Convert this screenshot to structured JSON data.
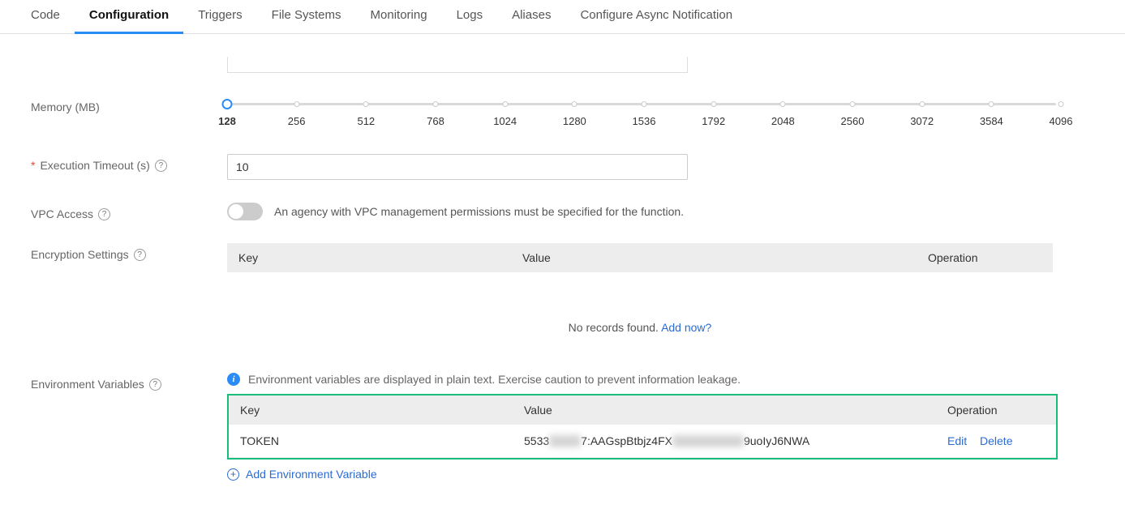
{
  "tabs": [
    {
      "label": "Code",
      "active": false
    },
    {
      "label": "Configuration",
      "active": true
    },
    {
      "label": "Triggers",
      "active": false
    },
    {
      "label": "File Systems",
      "active": false
    },
    {
      "label": "Monitoring",
      "active": false
    },
    {
      "label": "Logs",
      "active": false
    },
    {
      "label": "Aliases",
      "active": false
    },
    {
      "label": "Configure Async Notification",
      "active": false
    }
  ],
  "memory": {
    "label": "Memory (MB)",
    "current": "128",
    "steps": [
      "128",
      "256",
      "512",
      "768",
      "1024",
      "1280",
      "1536",
      "1792",
      "2048",
      "2560",
      "3072",
      "3584",
      "4096"
    ]
  },
  "timeout": {
    "label": "Execution Timeout (s)",
    "value": "10",
    "required": true
  },
  "vpc": {
    "label": "VPC Access",
    "description": "An agency with VPC management permissions must be specified for the function."
  },
  "encryption": {
    "label": "Encryption Settings",
    "columns": {
      "key": "Key",
      "value": "Value",
      "op": "Operation"
    },
    "empty_text": "No records found. ",
    "empty_link": "Add now?"
  },
  "env": {
    "label": "Environment Variables",
    "info": "Environment variables are displayed in plain text. Exercise caution to prevent information leakage.",
    "columns": {
      "key": "Key",
      "value": "Value",
      "op": "Operation"
    },
    "rows": [
      {
        "key": "TOKEN",
        "value_pre": "5533",
        "value_mid1": "xxxxx",
        "value_mid2": "7:AAGspBtbjz4FX",
        "value_mid3": "xxxxxxxxxxxx",
        "value_post": "9uoIyJ6NWA",
        "edit": "Edit",
        "delete": "Delete"
      }
    ],
    "add_label": "Add Environment Variable"
  }
}
